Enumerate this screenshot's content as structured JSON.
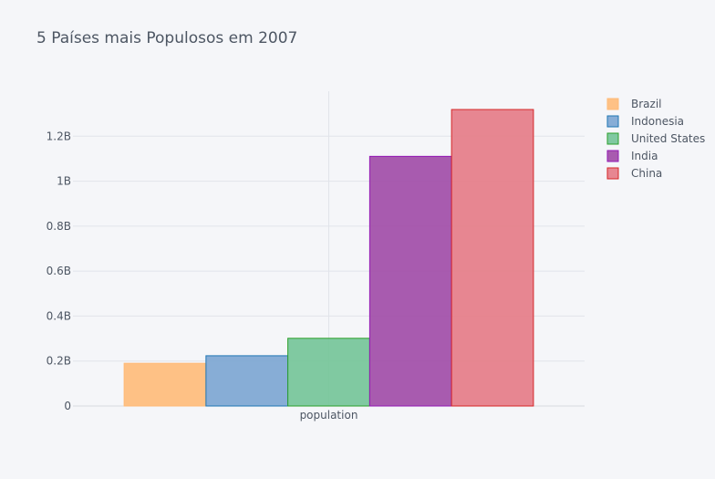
{
  "chart_data": {
    "type": "bar",
    "title": "5 Países mais Populosos em 2007",
    "xlabel": "",
    "ylabel": "",
    "categories": [
      "population"
    ],
    "series": [
      {
        "name": "Brazil",
        "values": [
          190010647
        ],
        "color": "#ffbb78"
      },
      {
        "name": "Indonesia",
        "values": [
          223547000
        ],
        "color": "#7ba5d1"
      },
      {
        "name": "United States",
        "values": [
          301139947
        ],
        "color": "#73c497"
      },
      {
        "name": "India",
        "values": [
          1110396331
        ],
        "color": "#a04aa6"
      },
      {
        "name": "China",
        "values": [
          1318683096
        ],
        "color": "#e57a85"
      }
    ],
    "series_stroke_colors": [
      "#ffbb78",
      "#1f77b4",
      "#2ca02c",
      "#9418b4",
      "#d62728"
    ],
    "ylim": [
      0,
      1400000000
    ],
    "yticks": [
      {
        "value": 0,
        "label": "0"
      },
      {
        "value": 200000000,
        "label": "0.2B"
      },
      {
        "value": 400000000,
        "label": "0.4B"
      },
      {
        "value": 600000000,
        "label": "0.6B"
      },
      {
        "value": 800000000,
        "label": "0.8B"
      },
      {
        "value": 1000000000,
        "label": "1B"
      },
      {
        "value": 1200000000,
        "label": "1.2B"
      }
    ],
    "grid": true,
    "legend_position": "top-right",
    "background": "#f5f6f9",
    "grid_color": "#e1e4ea"
  }
}
